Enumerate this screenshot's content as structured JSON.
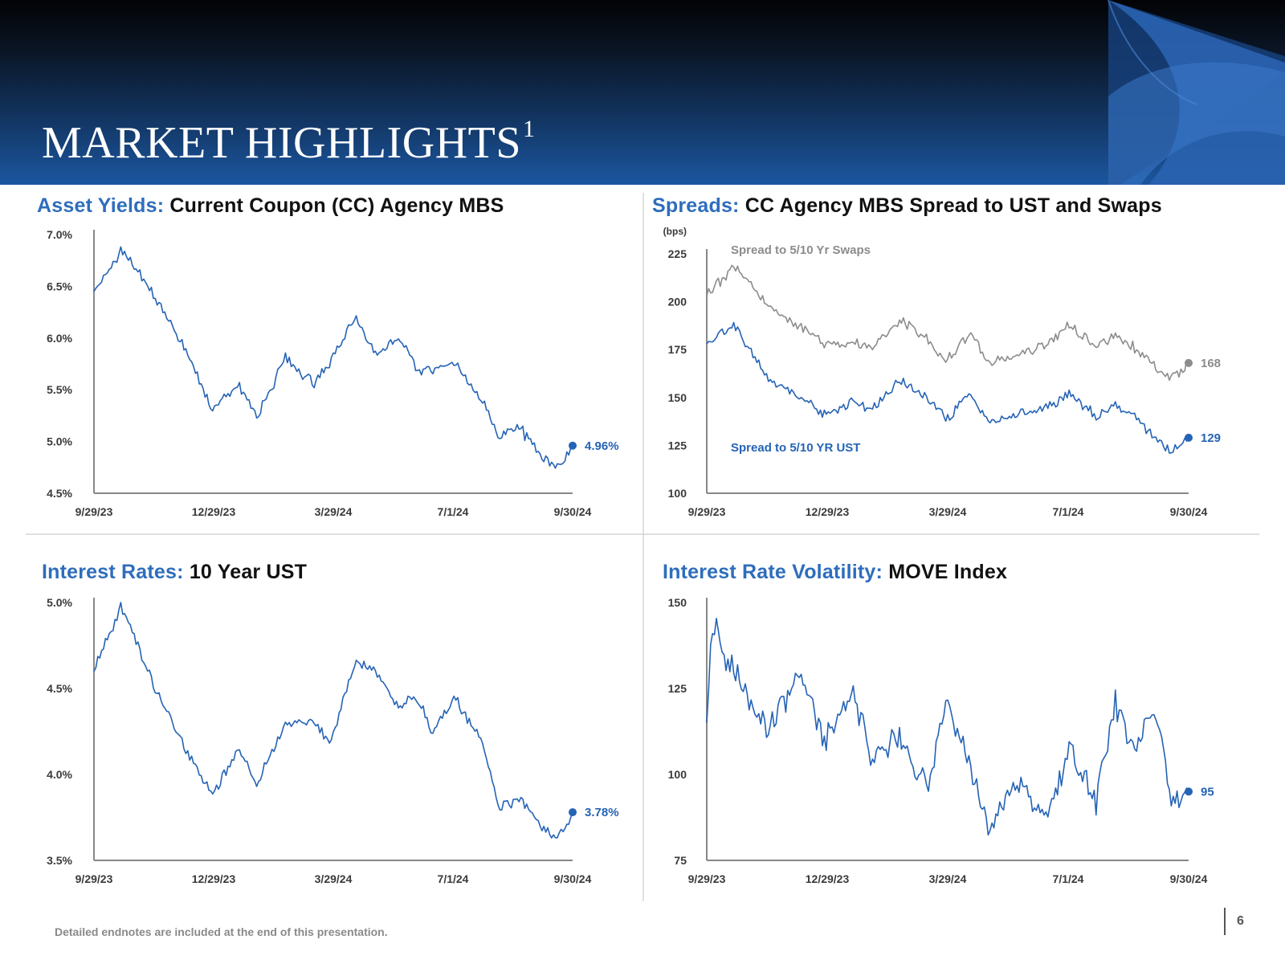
{
  "page": {
    "title": "MARKET HIGHLIGHTS",
    "title_superscript": "1",
    "footnote": "Detailed endnotes are included at the end of this presentation.",
    "page_number": "6"
  },
  "colors": {
    "accent_blue": "#2e6dbc",
    "series_blue": "#2563b5",
    "series_gray": "#8c8c8c",
    "banner_dark": "#020305",
    "banner_blue": "#1b56a0"
  },
  "panels": {
    "asset_yields": {
      "title_lead": "Asset Yields:",
      "title_rest": "Current Coupon (CC) Agency MBS"
    },
    "spreads": {
      "title_lead": "Spreads:",
      "title_rest": "CC Agency MBS Spread to UST and Swaps"
    },
    "interest_rates": {
      "title_lead": "Interest Rates:",
      "title_rest": "10 Year UST"
    },
    "volatility": {
      "title_lead": "Interest Rate Volatility:",
      "title_rest": "MOVE Index"
    }
  },
  "chart_data": [
    {
      "id": "asset_yields",
      "type": "line",
      "title": "Asset Yields: Current Coupon (CC) Agency MBS",
      "x_ticks": [
        "9/29/23",
        "12/29/23",
        "3/29/24",
        "7/1/24",
        "9/30/24"
      ],
      "x_range": [
        "9/29/23",
        "9/30/24"
      ],
      "ylim": [
        4.5,
        7.0
      ],
      "y_ticks": [
        "4.5%",
        "5.0%",
        "5.5%",
        "6.0%",
        "6.5%",
        "7.0%"
      ],
      "grid": false,
      "series": [
        {
          "color": "#2563b5",
          "end_label": "4.96%",
          "x": [
            "9/29/23",
            "10/20/23",
            "11/15/23",
            "12/8/23",
            "12/29/23",
            "1/18/24",
            "2/1/24",
            "2/23/24",
            "3/15/24",
            "3/29/24",
            "4/16/24",
            "5/1/24",
            "5/20/24",
            "6/3/24",
            "6/14/24",
            "7/1/24",
            "7/22/24",
            "8/5/24",
            "8/20/24",
            "9/6/24",
            "9/17/24",
            "9/30/24"
          ],
          "values": [
            6.45,
            6.85,
            6.4,
            5.9,
            5.3,
            5.55,
            5.25,
            5.8,
            5.55,
            5.8,
            6.2,
            5.85,
            6.0,
            5.7,
            5.7,
            5.75,
            5.4,
            5.05,
            5.15,
            4.85,
            4.75,
            4.96
          ]
        }
      ]
    },
    {
      "id": "spreads",
      "type": "line",
      "title": "Spreads: CC Agency MBS Spread to UST and Swaps",
      "ylabel": "(bps)",
      "x_ticks": [
        "9/29/23",
        "12/29/23",
        "3/29/24",
        "7/1/24",
        "9/30/24"
      ],
      "x_range": [
        "9/29/23",
        "9/30/24"
      ],
      "ylim": [
        100,
        225
      ],
      "y_ticks": [
        "100",
        "125",
        "150",
        "175",
        "200",
        "225"
      ],
      "grid": false,
      "series": [
        {
          "name": "Spread to 5/10 Yr Swaps",
          "color": "#8c8c8c",
          "end_label": "168",
          "x": [
            "9/29/23",
            "10/20/23",
            "11/15/23",
            "12/8/23",
            "12/29/23",
            "1/18/24",
            "2/1/24",
            "2/23/24",
            "3/15/24",
            "3/29/24",
            "4/16/24",
            "5/1/24",
            "5/20/24",
            "6/3/24",
            "6/14/24",
            "7/1/24",
            "7/22/24",
            "8/5/24",
            "8/20/24",
            "9/6/24",
            "9/17/24",
            "9/30/24"
          ],
          "values": [
            203,
            219,
            198,
            188,
            178,
            178,
            176,
            190,
            181,
            168,
            184,
            168,
            172,
            175,
            178,
            188,
            176,
            182,
            176,
            166,
            160,
            168
          ]
        },
        {
          "name": "Spread to 5/10 YR UST",
          "color": "#2563b5",
          "end_label": "129",
          "x": [
            "9/29/23",
            "10/20/23",
            "11/15/23",
            "12/8/23",
            "12/29/23",
            "1/18/24",
            "2/1/24",
            "2/23/24",
            "3/15/24",
            "3/29/24",
            "4/16/24",
            "5/1/24",
            "5/20/24",
            "6/3/24",
            "6/14/24",
            "7/1/24",
            "7/22/24",
            "8/5/24",
            "8/20/24",
            "9/6/24",
            "9/17/24",
            "9/30/24"
          ],
          "values": [
            178,
            188,
            160,
            150,
            141,
            147,
            143,
            159,
            150,
            138,
            152,
            136,
            141,
            142,
            145,
            152,
            140,
            146,
            140,
            128,
            121,
            129
          ]
        }
      ]
    },
    {
      "id": "interest_rates",
      "type": "line",
      "title": "Interest Rates: 10 Year UST",
      "x_ticks": [
        "9/29/23",
        "12/29/23",
        "3/29/24",
        "7/1/24",
        "9/30/24"
      ],
      "x_range": [
        "9/29/23",
        "9/30/24"
      ],
      "ylim": [
        3.5,
        5.0
      ],
      "y_ticks": [
        "3.5%",
        "4.0%",
        "4.5%",
        "5.0%"
      ],
      "grid": false,
      "series": [
        {
          "color": "#2563b5",
          "end_label": "3.78%",
          "x": [
            "9/29/23",
            "10/20/23",
            "11/15/23",
            "12/8/23",
            "12/29/23",
            "1/18/24",
            "2/1/24",
            "2/23/24",
            "3/15/24",
            "3/29/24",
            "4/16/24",
            "5/1/24",
            "5/20/24",
            "6/3/24",
            "6/14/24",
            "7/1/24",
            "7/22/24",
            "8/5/24",
            "8/20/24",
            "9/6/24",
            "9/17/24",
            "9/30/24"
          ],
          "values": [
            4.6,
            4.98,
            4.5,
            4.15,
            3.88,
            4.15,
            3.95,
            4.3,
            4.3,
            4.2,
            4.65,
            4.6,
            4.4,
            4.45,
            4.25,
            4.45,
            4.2,
            3.8,
            3.87,
            3.7,
            3.63,
            3.78
          ]
        }
      ]
    },
    {
      "id": "volatility",
      "type": "line",
      "title": "Interest Rate Volatility: MOVE Index",
      "x_ticks": [
        "9/29/23",
        "12/29/23",
        "3/29/24",
        "7/1/24",
        "9/30/24"
      ],
      "x_range": [
        "9/29/23",
        "9/30/24"
      ],
      "ylim": [
        75,
        150
      ],
      "y_ticks": [
        "75",
        "100",
        "125",
        "150"
      ],
      "grid": false,
      "series": [
        {
          "color": "#2563b5",
          "end_label": "95",
          "x": [
            "9/29/23",
            "10/3/23",
            "10/20/23",
            "11/15/23",
            "12/8/23",
            "12/29/23",
            "1/18/24",
            "2/1/24",
            "2/23/24",
            "3/15/24",
            "3/29/24",
            "4/16/24",
            "5/1/24",
            "5/20/24",
            "6/3/24",
            "6/14/24",
            "7/1/24",
            "7/22/24",
            "8/5/24",
            "8/20/24",
            "9/6/24",
            "9/17/24",
            "9/30/24"
          ],
          "values": [
            115,
            143,
            130,
            112,
            130,
            110,
            126,
            106,
            111,
            95,
            122,
            103,
            83,
            99,
            92,
            87,
            108,
            92,
            121,
            108,
            119,
            92,
            95
          ]
        }
      ]
    }
  ]
}
